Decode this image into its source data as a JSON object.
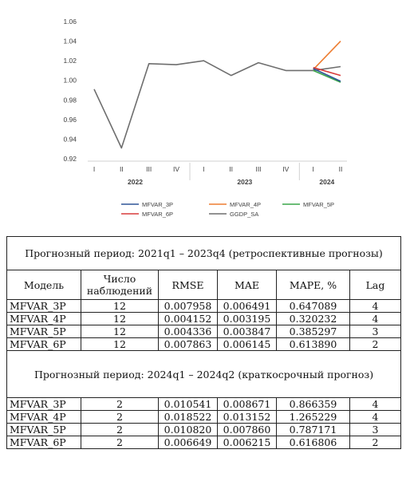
{
  "chart_data": {
    "type": "line",
    "y_ticks": [
      "0.92",
      "0.94",
      "0.96",
      "0.98",
      "1.00",
      "1.02",
      "1.04",
      "1.06"
    ],
    "ylim": [
      0.92,
      1.06
    ],
    "periods": [
      "I",
      "II",
      "III",
      "IV",
      "I",
      "II",
      "III",
      "IV",
      "I",
      "II"
    ],
    "years": [
      "2022",
      "2023",
      "2024"
    ],
    "grid": false,
    "legend_position": "bottom",
    "series": [
      {
        "name": "MFVAR_3P",
        "color": "#2e5597",
        "x_index": [
          8,
          9
        ],
        "values": [
          1.012,
          0.999
        ]
      },
      {
        "name": "MFVAR_4P",
        "color": "#ed7d31",
        "x_index": [
          8,
          9
        ],
        "values": [
          1.011,
          1.04
        ]
      },
      {
        "name": "MFVAR_5P",
        "color": "#3aa64a",
        "x_index": [
          8,
          9
        ],
        "values": [
          1.01,
          0.998
        ]
      },
      {
        "name": "MFVAR_6P",
        "color": "#d83b3b",
        "x_index": [
          8,
          9
        ],
        "values": [
          1.013,
          1.005
        ]
      },
      {
        "name": "GGDP_SA",
        "color": "#6e6e6e",
        "x_index": [
          0,
          1,
          2,
          3,
          4,
          5,
          6,
          7,
          8,
          9
        ],
        "values": [
          0.991,
          0.931,
          1.017,
          1.016,
          1.02,
          1.005,
          1.018,
          1.01,
          1.01,
          1.014
        ]
      }
    ]
  },
  "table": {
    "section1": "Прогнозный период: 2021q1 – 2023q4 (ретроспективные прогнозы)",
    "headers": [
      "Модель",
      "Число наблюдений",
      "RMSE",
      "MAE",
      "MAPE, %",
      "Lag"
    ],
    "rows1": [
      [
        "MFVAR_3P",
        "12",
        "0.007958",
        "0.006491",
        "0.647089",
        "4"
      ],
      [
        "MFVAR_4P",
        "12",
        "0.004152",
        "0.003195",
        "0.320232",
        "4"
      ],
      [
        "MFVAR_5P",
        "12",
        "0.004336",
        "0.003847",
        "0.385297",
        "3"
      ],
      [
        "MFVAR_6P",
        "12",
        "0.007863",
        "0.006145",
        "0.613890",
        "2"
      ]
    ],
    "section2": "Прогнозный период: 2024q1 – 2024q2 (краткосрочный прогноз)",
    "rows2": [
      [
        "MFVAR_3P",
        "2",
        "0.010541",
        "0.008671",
        "0.866359",
        "4"
      ],
      [
        "MFVAR_4P",
        "2",
        "0.018522",
        "0.013152",
        "1.265229",
        "4"
      ],
      [
        "MFVAR_5P",
        "2",
        "0.010820",
        "0.007860",
        "0.787171",
        "3"
      ],
      [
        "MFVAR_6P",
        "2",
        "0.006649",
        "0.006215",
        "0.616806",
        "2"
      ]
    ]
  }
}
